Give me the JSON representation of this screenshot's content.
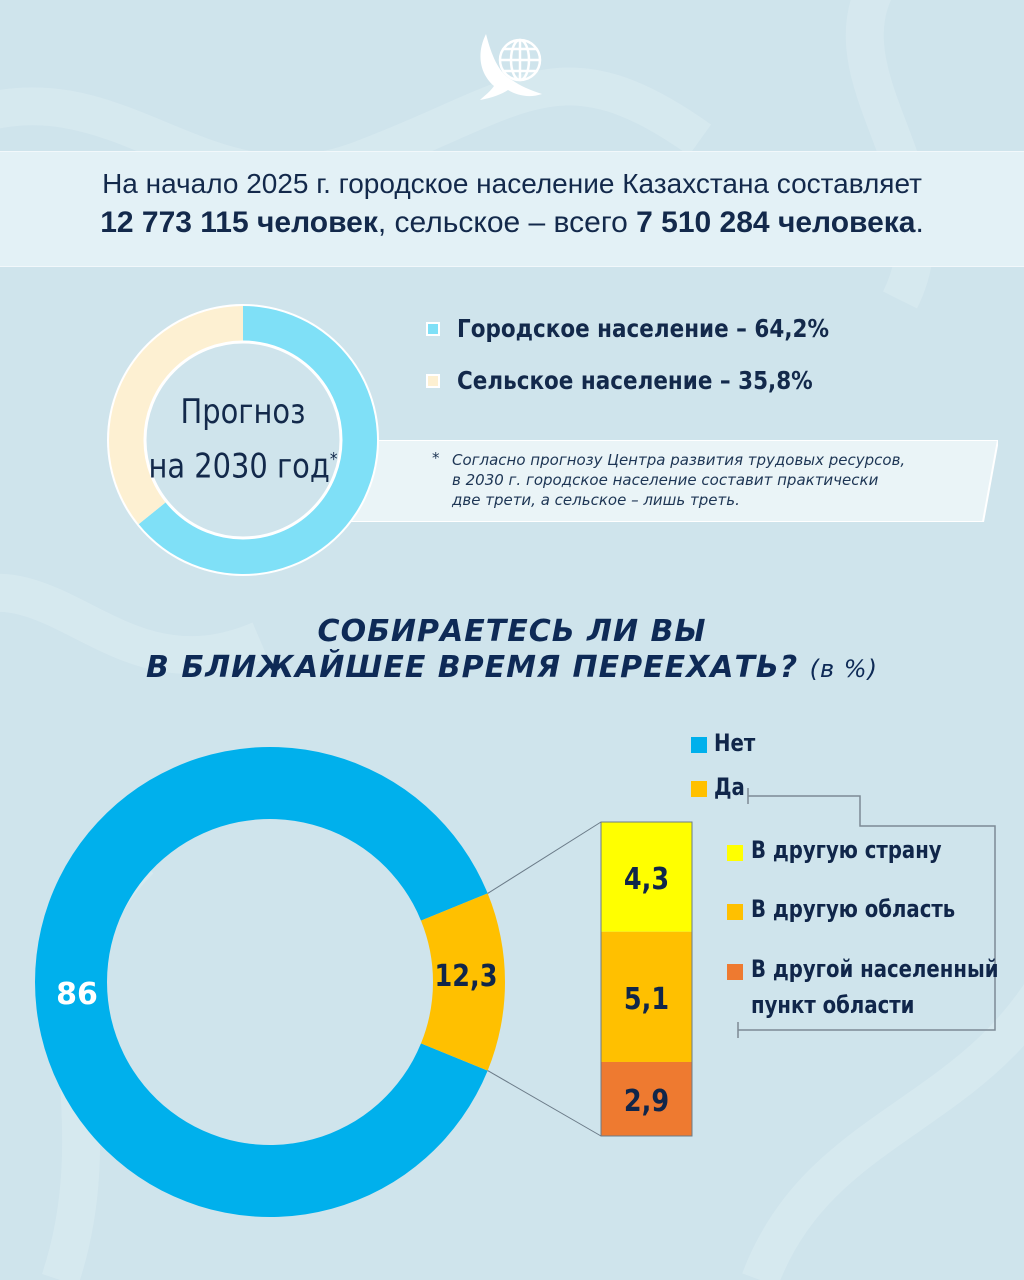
{
  "header": {
    "line1": "На начало 2025 г. городское население Казахстана составляет",
    "urban_count": "12 773 115 человек",
    "middle": ", сельское – всего ",
    "rural_count": "7 510 284 человека",
    "end": "."
  },
  "forecast": {
    "center_line1": "Прогноз",
    "center_line2": "на 2030 год",
    "center_mark": "*",
    "note_mark": "*",
    "note_line1": "Согласно прогнозу Центра развития трудовых ресурсов,",
    "note_line2": "в 2030 г. городское население составит практически",
    "note_line3": "две трети, а сельское – лишь треть."
  },
  "survey": {
    "title_line1": "СОБИРАЕТЕСЬ ЛИ ВЫ",
    "title_line2": "В БЛИЖАЙШЕЕ ВРЕМЯ ПЕРЕЕХАТЬ?",
    "title_unit": "(в %)",
    "legend": {
      "no": "Нет",
      "yes": "Да",
      "other_country": "В другую страну",
      "other_region": "В другую область",
      "other_place_1": "В другой населенный",
      "other_place_2": "пункт области"
    }
  },
  "colors": {
    "urban": "#7fe0f7",
    "rural": "#fdf0d2",
    "no": "#00b0ec",
    "yes": "#ffc000",
    "other_country": "#ffff00",
    "other_region": "#ffc000",
    "other_place": "#ee7a30"
  },
  "chart_data": [
    {
      "type": "pie",
      "variant": "donut",
      "slices": [
        {
          "label": "Городское население",
          "value": 64.2,
          "display": "Городское население – 64,2%",
          "color": "#7fe0f7"
        },
        {
          "label": "Сельское население",
          "value": 35.8,
          "display": "Сельское население – 35,8%",
          "color": "#fdf0d2"
        }
      ],
      "legend_position": "right"
    },
    {
      "type": "pie",
      "variant": "donut",
      "slices": [
        {
          "label": "Нет",
          "value": 86,
          "display": "86",
          "color": "#00b0ec"
        },
        {
          "label": "Да",
          "value": 12.3,
          "display": "12,3",
          "color": "#ffc000"
        }
      ],
      "legend_position": "top-right"
    },
    {
      "type": "bar",
      "variant": "stacked",
      "categories": [
        "Да"
      ],
      "series": [
        {
          "name": "В другую страну",
          "values": [
            4.3
          ],
          "display": "4,3",
          "color": "#ffff00"
        },
        {
          "name": "В другую область",
          "values": [
            5.1
          ],
          "display": "5,1",
          "color": "#ffc000"
        },
        {
          "name": "В другой населенный пункт области",
          "values": [
            2.9
          ],
          "display": "2,9",
          "color": "#ee7a30"
        }
      ]
    }
  ]
}
